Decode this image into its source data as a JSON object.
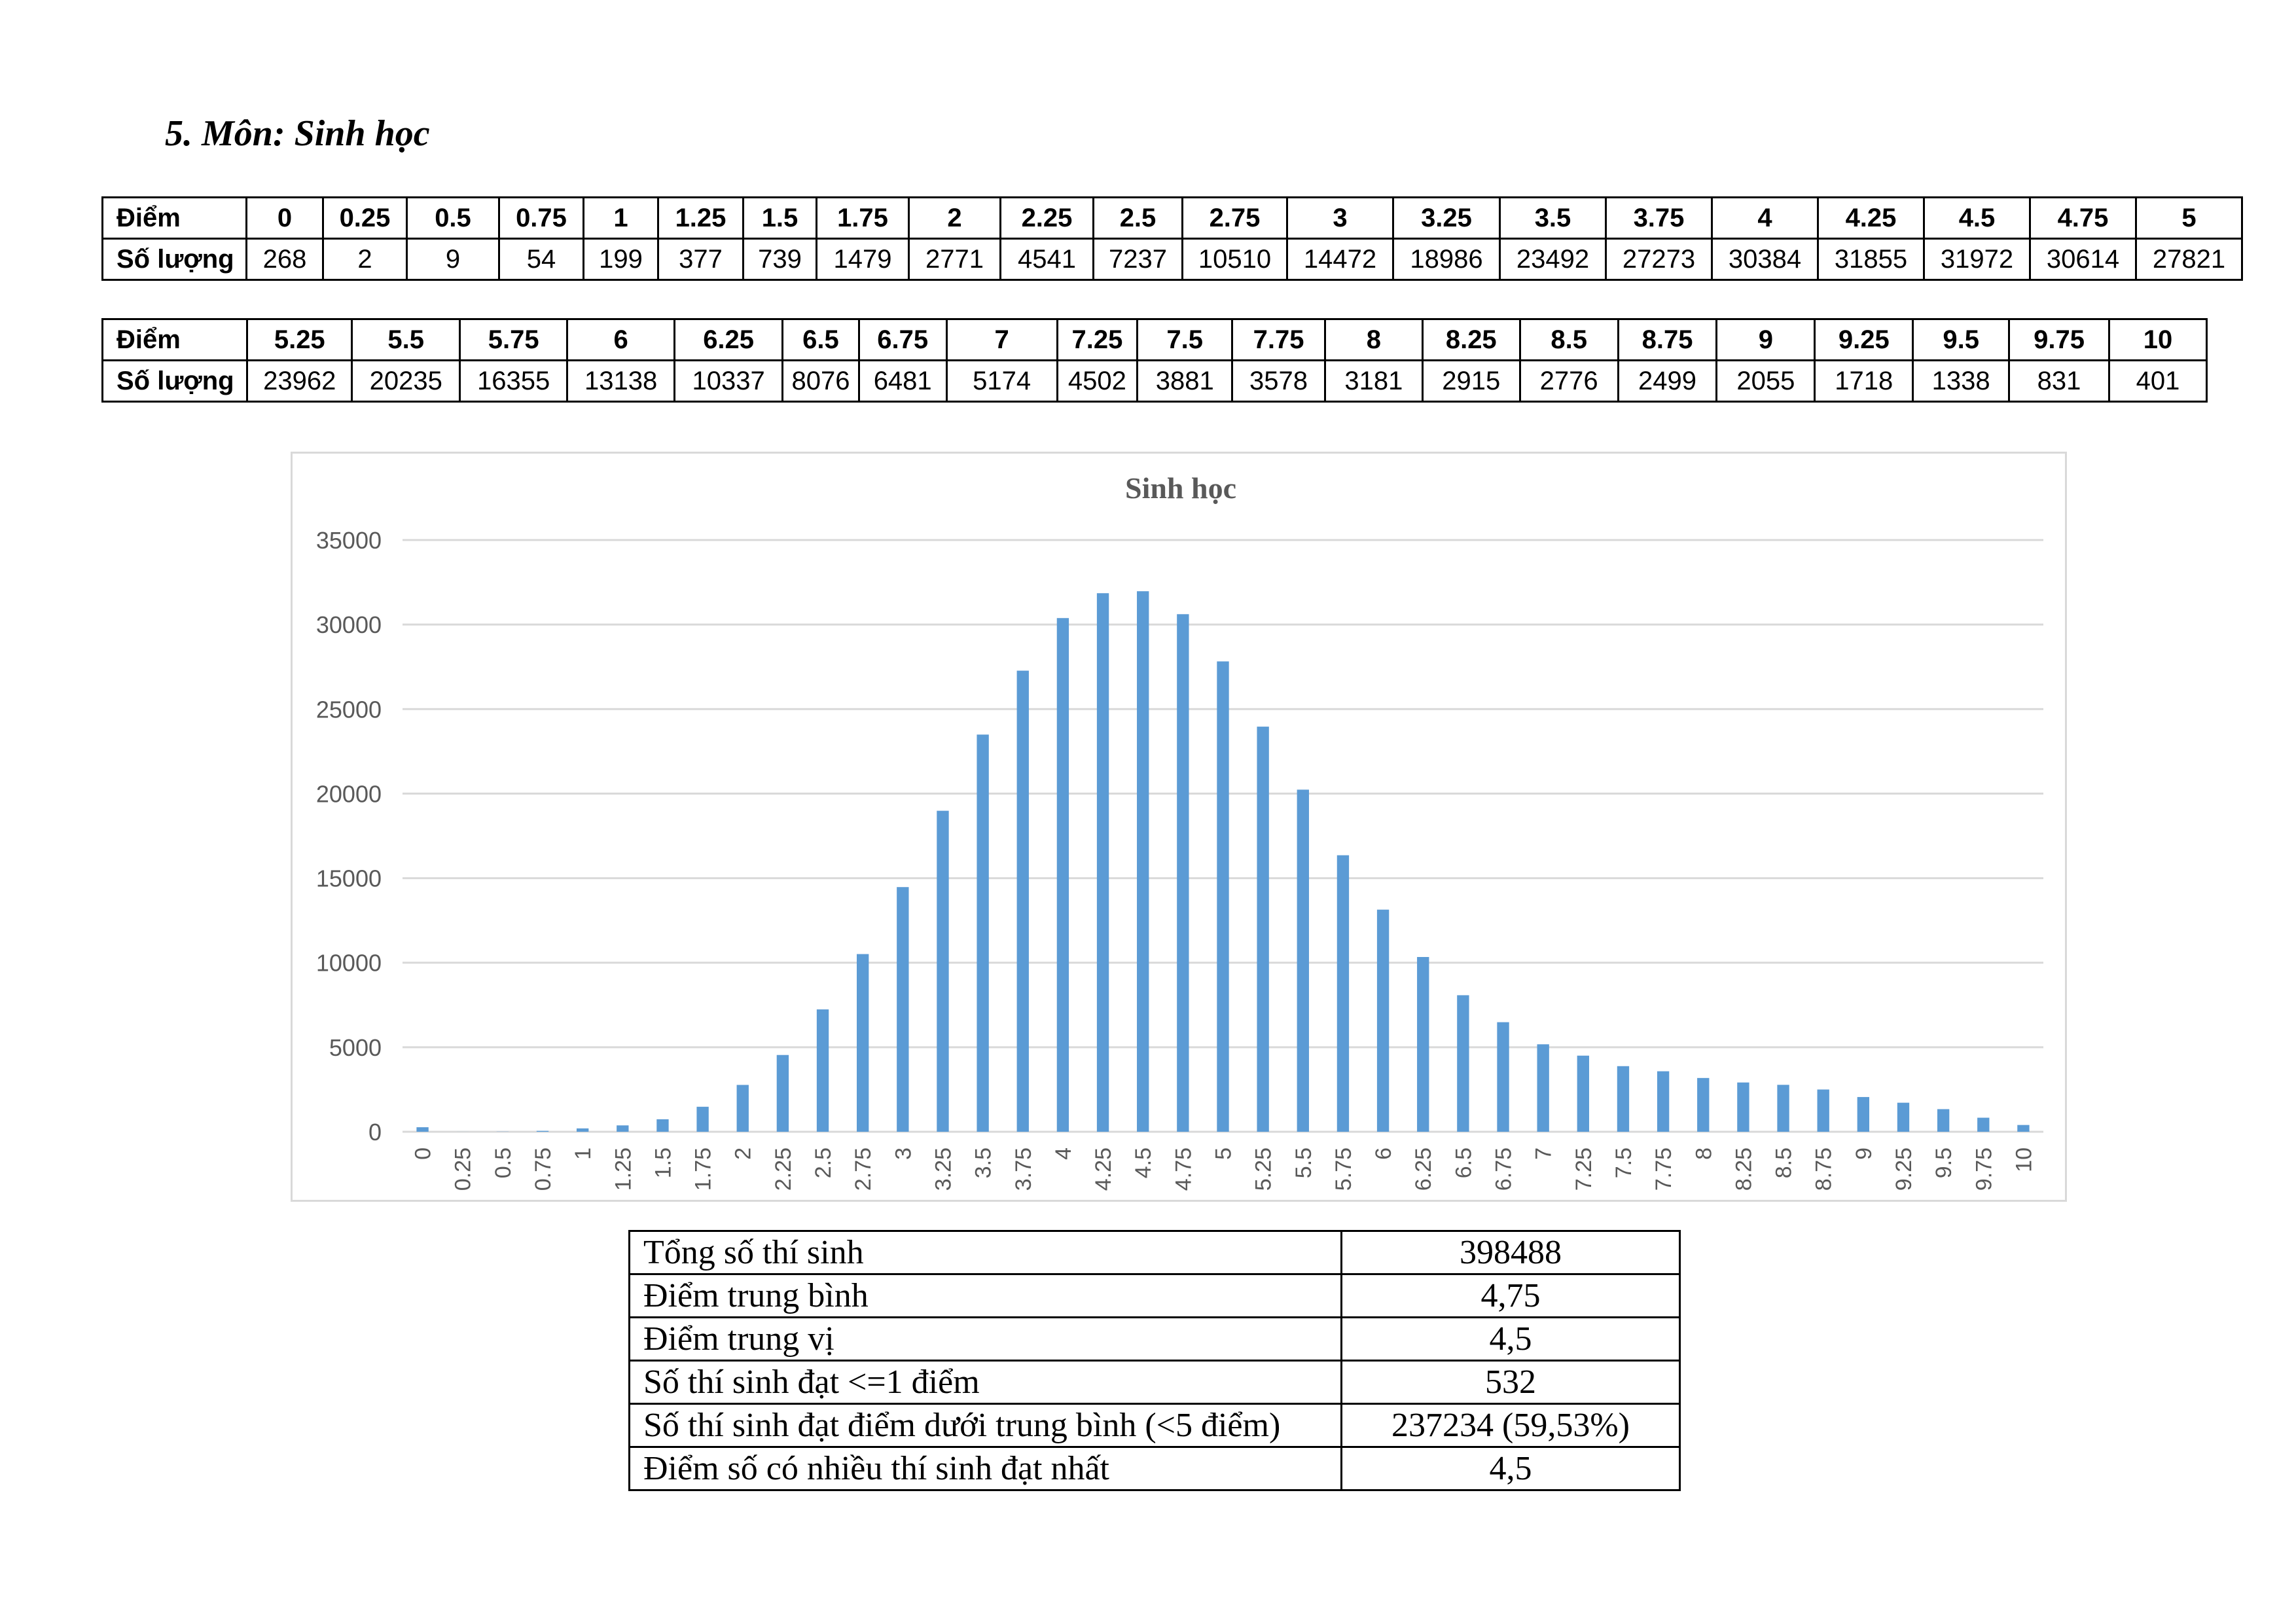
{
  "heading": "5.  Môn: Sinh học",
  "table1": {
    "label_score": "Điểm",
    "label_count": "Số lượng",
    "scores": [
      "0",
      "0.25",
      "0.5",
      "0.75",
      "1",
      "1.25",
      "1.5",
      "1.75",
      "2",
      "2.25",
      "2.5",
      "2.75",
      "3",
      "3.25",
      "3.5",
      "3.75",
      "4",
      "4.25",
      "4.5",
      "4.75",
      "5"
    ],
    "counts": [
      "268",
      "2",
      "9",
      "54",
      "199",
      "377",
      "739",
      "1479",
      "2771",
      "4541",
      "7237",
      "10510",
      "14472",
      "18986",
      "23492",
      "27273",
      "30384",
      "31855",
      "31972",
      "30614",
      "27821"
    ]
  },
  "table2": {
    "label_score": "Điểm",
    "label_count": "Số lượng",
    "scores": [
      "5.25",
      "5.5",
      "5.75",
      "6",
      "6.25",
      "6.5",
      "6.75",
      "7",
      "7.25",
      "7.5",
      "7.75",
      "8",
      "8.25",
      "8.5",
      "8.75",
      "9",
      "9.25",
      "9.5",
      "9.75",
      "10"
    ],
    "counts": [
      "23962",
      "20235",
      "16355",
      "13138",
      "10337",
      "8076",
      "6481",
      "5174",
      "4502",
      "3881",
      "3578",
      "3181",
      "2915",
      "2776",
      "2499",
      "2055",
      "1718",
      "1338",
      "831",
      "401"
    ]
  },
  "chart_data": {
    "type": "bar",
    "title": "Sinh học",
    "xlabel": "",
    "ylabel": "",
    "ylim": [
      0,
      35000
    ],
    "yticks": [
      0,
      5000,
      10000,
      15000,
      20000,
      25000,
      30000,
      35000
    ],
    "grid": true,
    "legend": "none",
    "bar_color": "#5b9bd5",
    "categories": [
      "0",
      "0.25",
      "0.5",
      "0.75",
      "1",
      "1.25",
      "1.5",
      "1.75",
      "2",
      "2.25",
      "2.5",
      "2.75",
      "3",
      "3.25",
      "3.5",
      "3.75",
      "4",
      "4.25",
      "4.5",
      "4.75",
      "5",
      "5.25",
      "5.5",
      "5.75",
      "6",
      "6.25",
      "6.5",
      "6.75",
      "7",
      "7.25",
      "7.5",
      "7.75",
      "8",
      "8.25",
      "8.5",
      "8.75",
      "9",
      "9.25",
      "9.5",
      "9.75",
      "10"
    ],
    "values": [
      268,
      2,
      9,
      54,
      199,
      377,
      739,
      1479,
      2771,
      4541,
      7237,
      10510,
      14472,
      18986,
      23492,
      27273,
      30384,
      31855,
      31972,
      30614,
      27821,
      23962,
      20235,
      16355,
      13138,
      10337,
      8076,
      6481,
      5174,
      4502,
      3881,
      3578,
      3181,
      2915,
      2776,
      2499,
      2055,
      1718,
      1338,
      831,
      401
    ]
  },
  "stats": {
    "rows": [
      {
        "label": "Tổng số thí sinh",
        "value": "398488"
      },
      {
        "label": "Điểm trung bình",
        "value": "4,75"
      },
      {
        "label": "Điểm trung vị",
        "value": "4,5"
      },
      {
        "label": "Số thí sinh đạt <=1 điểm",
        "value": "532"
      },
      {
        "label": "Số thí sinh đạt điểm dưới trung bình (<5 điểm)",
        "value": "237234 (59,53%)"
      },
      {
        "label": "Điểm số có nhiều thí sinh đạt nhất",
        "value": "4,5"
      }
    ]
  }
}
